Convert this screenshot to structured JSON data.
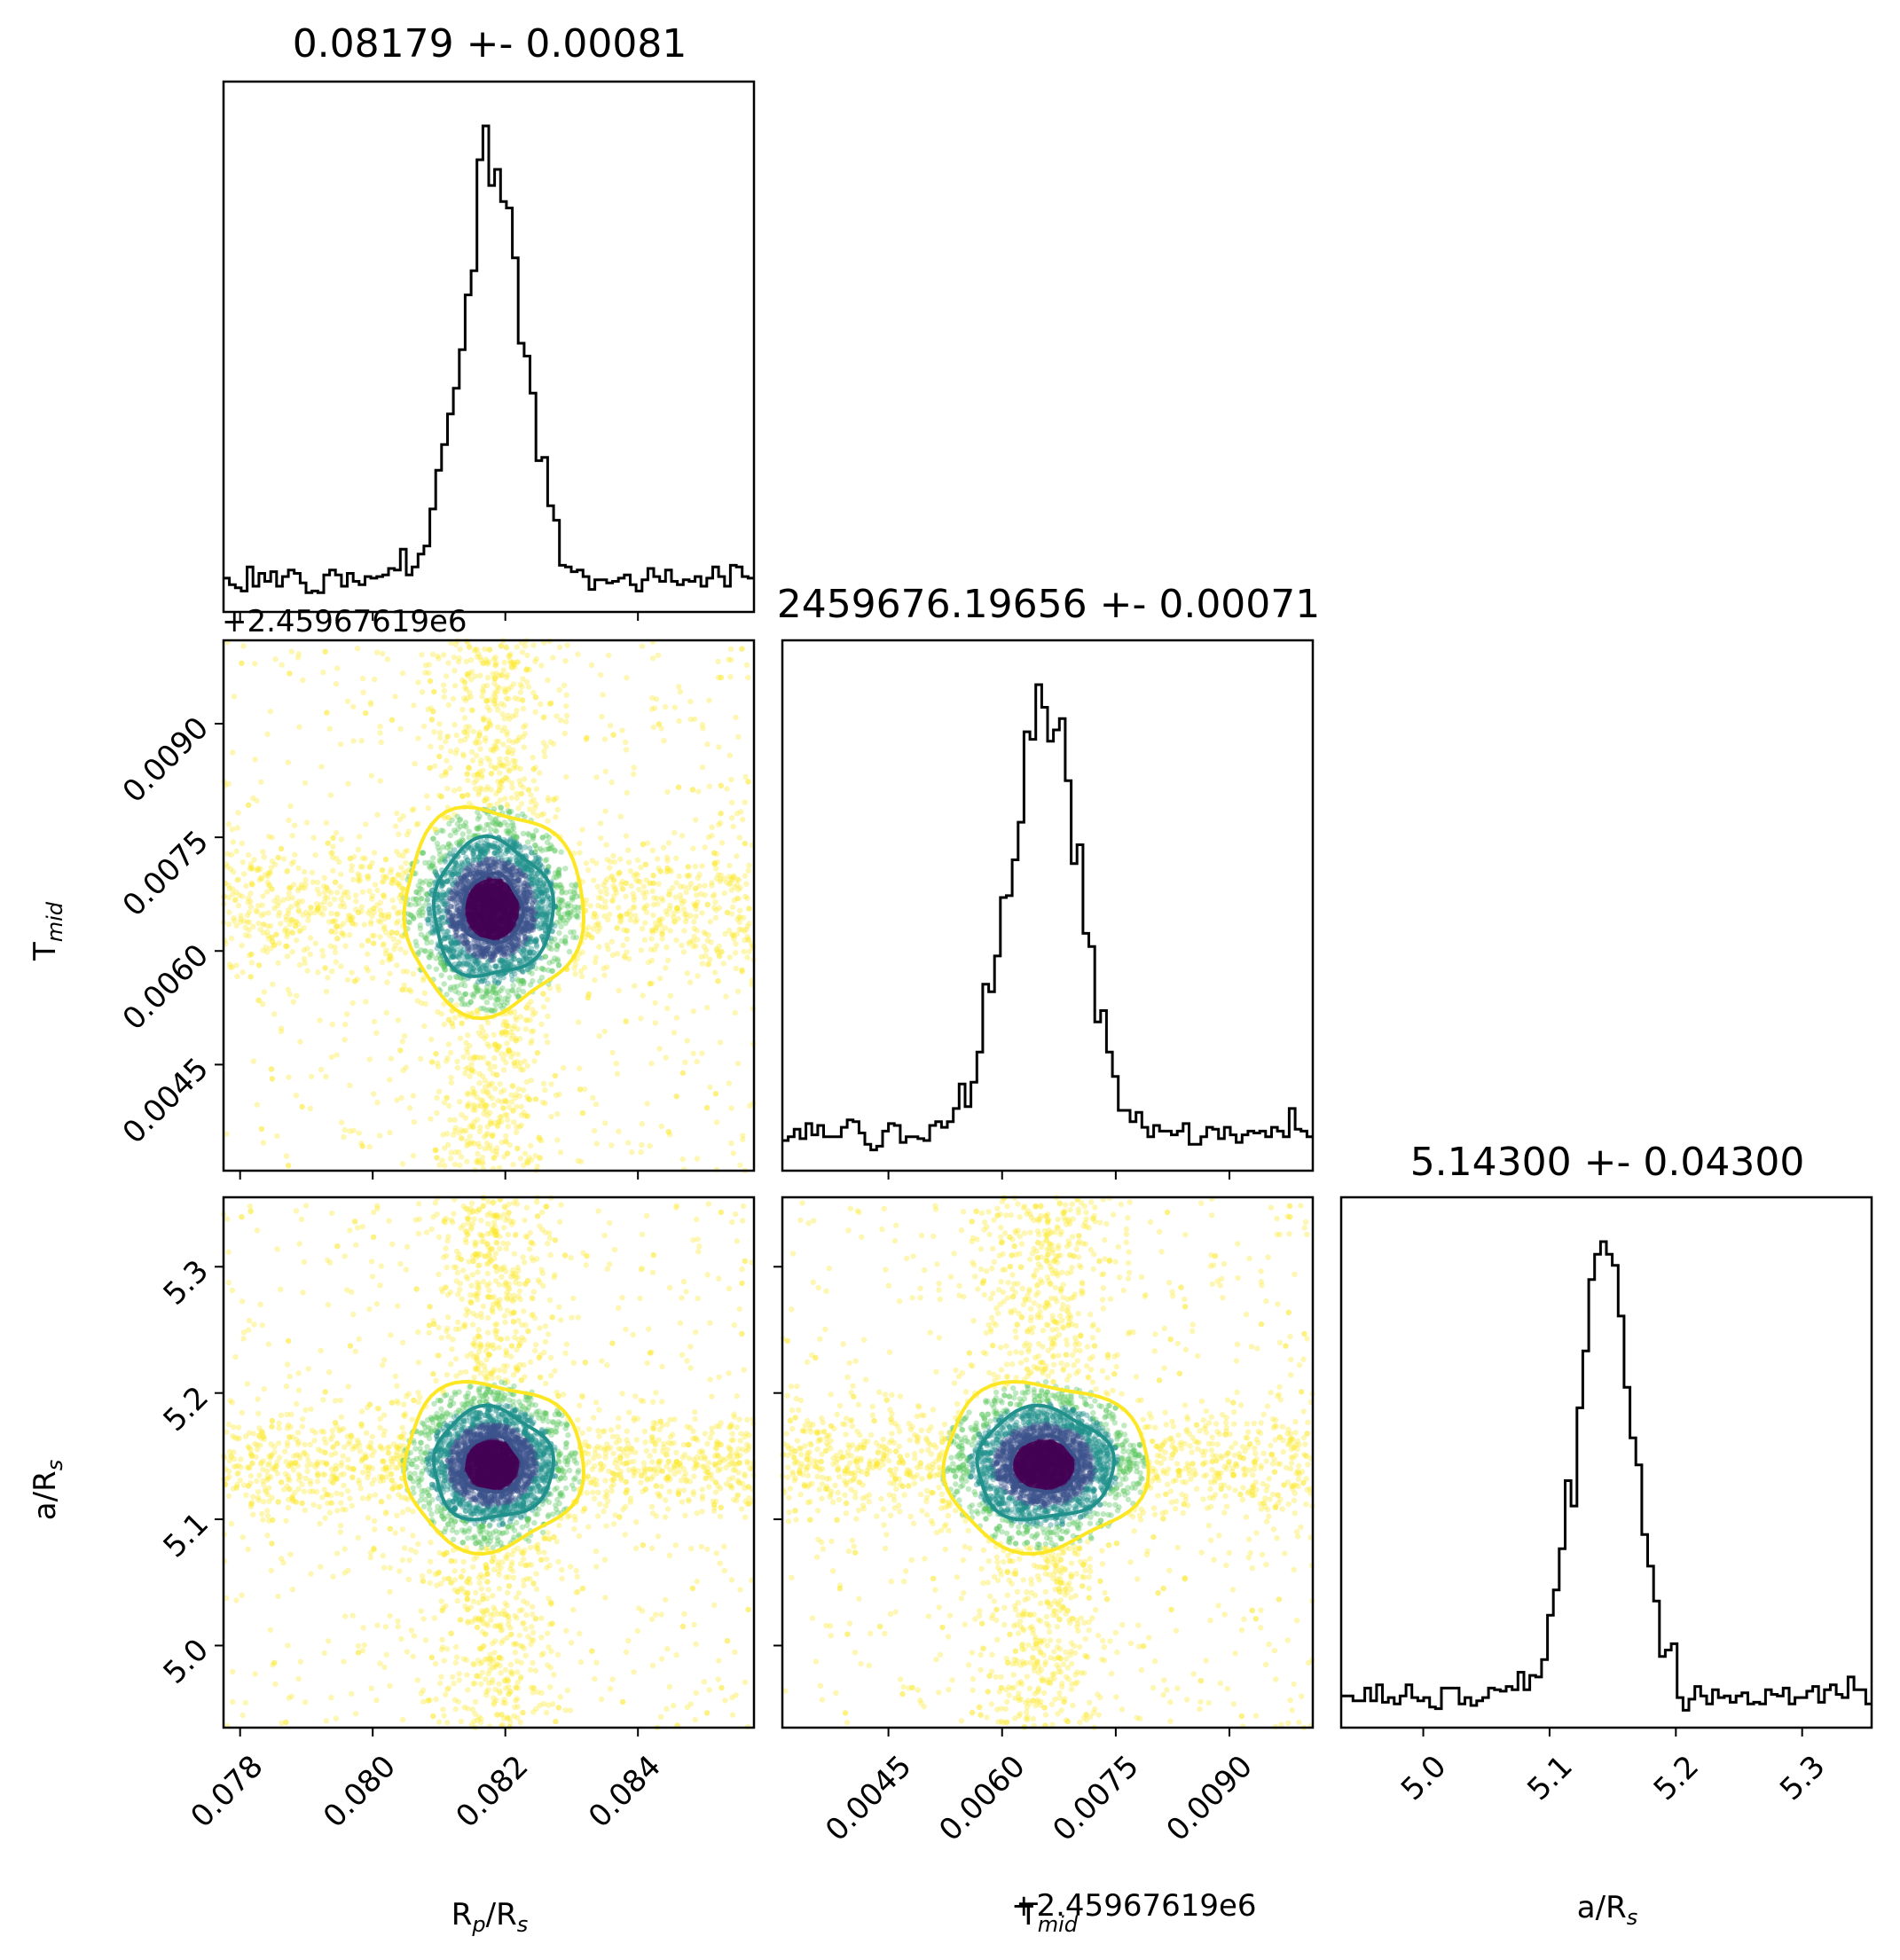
{
  "chart_data": {
    "type": "corner",
    "parameters": [
      {
        "key": "rp",
        "label_main": "R",
        "label_sub1": "p",
        "label_mid": "/R",
        "label_sub2": "s",
        "range": [
          0.07775,
          0.08575
        ],
        "ticks": [
          "0.078",
          "0.080",
          "0.082",
          "0.084"
        ],
        "tick_values": [
          0.078,
          0.08,
          0.082,
          0.084
        ]
      },
      {
        "key": "tmid",
        "label_main": "T",
        "label_sub1": "mid",
        "offset_text": "+2.45967619e6",
        "range": [
          0.0031,
          0.0101
        ],
        "ticks": [
          "0.0045",
          "0.0060",
          "0.0075",
          "0.0090"
        ],
        "tick_values": [
          0.0045,
          0.006,
          0.0075,
          0.009
        ]
      },
      {
        "key": "ars",
        "label_main": "a/R",
        "label_sub1": "s",
        "range": [
          4.935,
          5.355
        ],
        "ticks": [
          "5.0",
          "5.1",
          "5.2",
          "5.3"
        ],
        "tick_values": [
          5.0,
          5.1,
          5.2,
          5.3
        ]
      }
    ],
    "titles": [
      "0.08179 +- 0.00081",
      "2459676.19656 +- 0.00071",
      "5.14300 +- 0.04300"
    ],
    "posterior": {
      "rp": {
        "mean": 0.0818,
        "sigma": 0.00045
      },
      "tmid": {
        "mean": 0.00655,
        "sigma": 0.00045
      },
      "ars": {
        "mean": 5.143,
        "sigma": 0.022
      }
    },
    "contour_colors": [
      "#3b528b",
      "#21918c",
      "#fde725"
    ],
    "point_colors": [
      "#440154",
      "#3b528b",
      "#21918c",
      "#5ec962",
      "#fde725"
    ],
    "line_color": "#000000",
    "grid": false
  }
}
